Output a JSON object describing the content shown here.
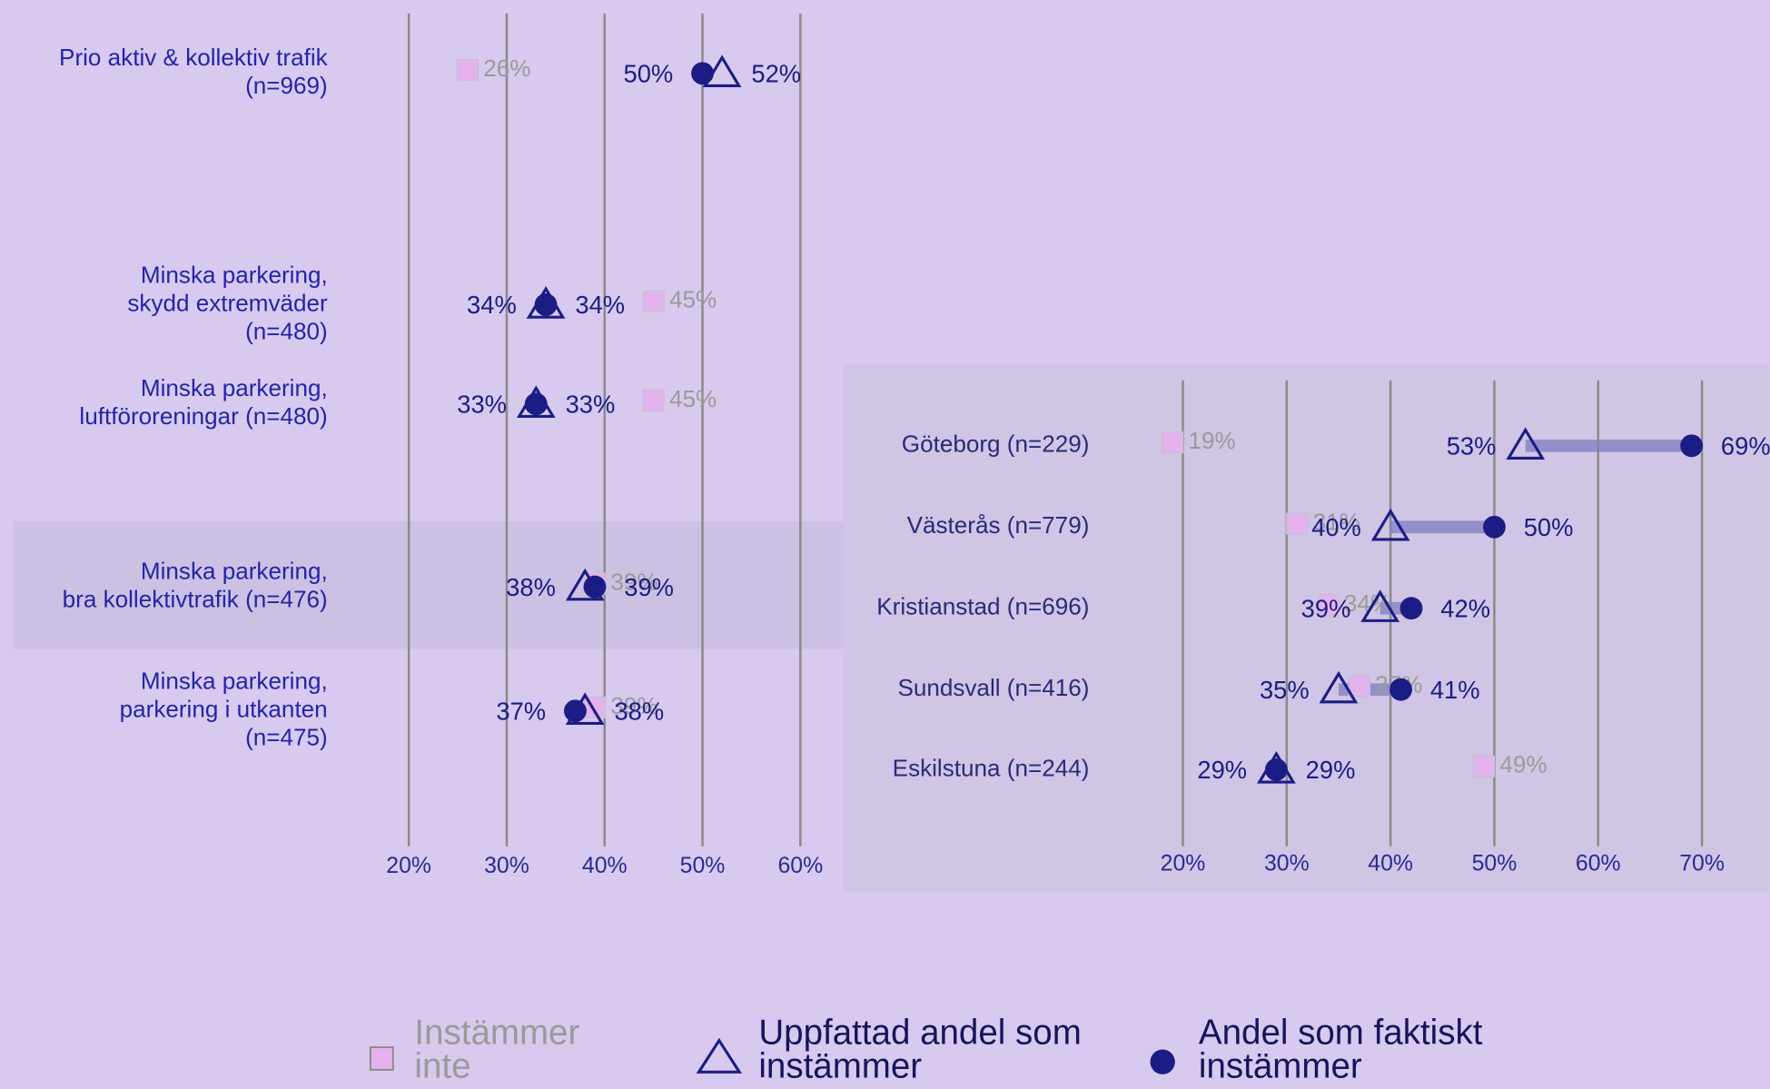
{
  "chart_data": [
    {
      "type": "dot",
      "categories": [
        [
          "Prio aktiv & kollektiv trafik",
          "(n=969)"
        ],
        [
          "Minska parkering,",
          "skydd extremväder",
          "(n=480)"
        ],
        [
          "Minska parkering,",
          "luftföroreningar (n=480)"
        ],
        [
          "Minska parkering,",
          "bra kollektivtrafik (n=476)"
        ],
        [
          "Minska parkering,",
          "parkering i utkanten",
          "(n=475)"
        ]
      ],
      "series": [
        {
          "name": "Instämmer inte",
          "color": "#e6b2ee",
          "marker": "square",
          "values": [
            26,
            45,
            45,
            39,
            39
          ],
          "value_labels": [
            "26%",
            "45%",
            "45%",
            "39%",
            "39%"
          ]
        },
        {
          "name": "Uppfattad andel som instämmer",
          "color": "#1c1c85",
          "marker": "triangle",
          "values": [
            52,
            34,
            33,
            38,
            38
          ],
          "value_labels": [
            "52%",
            "34%",
            "33%",
            "38%",
            "38%"
          ]
        },
        {
          "name": "Andel som faktiskt instämmer",
          "color": "#1c1c85",
          "marker": "circle",
          "values": [
            50,
            34,
            33,
            39,
            37
          ],
          "value_labels": [
            "50%",
            "34%",
            "33%",
            "39%",
            "37%"
          ]
        }
      ],
      "xlim": [
        20,
        60
      ],
      "xticks": [
        {
          "value": 20,
          "label": "20%"
        },
        {
          "value": 30,
          "label": "30%"
        },
        {
          "value": 40,
          "label": "40%"
        },
        {
          "value": 50,
          "label": "50%"
        },
        {
          "value": 60,
          "label": "60%"
        }
      ],
      "highlight": 3
    },
    {
      "type": "dot",
      "categories": [
        [
          "Göteborg (n=229)"
        ],
        [
          "Västerås (n=779)"
        ],
        [
          "Kristianstad (n=696)"
        ],
        [
          "Sundsvall (n=416)"
        ],
        [
          "Eskilstuna (n=244)"
        ]
      ],
      "series": [
        {
          "color": "#e6b2ee",
          "marker": "square",
          "values": [
            19,
            31,
            34,
            37,
            49
          ],
          "value_labels": [
            "19%",
            "31%",
            "34%",
            "37%",
            "49%"
          ]
        },
        {
          "color": "#1c1c85",
          "marker": "triangle",
          "values": [
            53,
            40,
            39,
            35,
            29
          ],
          "value_labels": [
            "53%",
            "40%",
            "39%",
            "35%",
            "29%"
          ]
        },
        {
          "color": "#1c1c85",
          "marker": "circle",
          "values": [
            69,
            50,
            42,
            41,
            29
          ],
          "value_labels": [
            "69%",
            "50%",
            "42%",
            "41%",
            "29%"
          ]
        }
      ],
      "xlim": [
        20,
        70
      ],
      "xticks": [
        {
          "value": 20,
          "label": "20%"
        },
        {
          "value": 30,
          "label": "30%"
        },
        {
          "value": 40,
          "label": "40%"
        },
        {
          "value": 50,
          "label": "50%"
        },
        {
          "value": 60,
          "label": "60%"
        },
        {
          "value": 70,
          "label": "70%"
        }
      ],
      "connector": true
    }
  ]
}
